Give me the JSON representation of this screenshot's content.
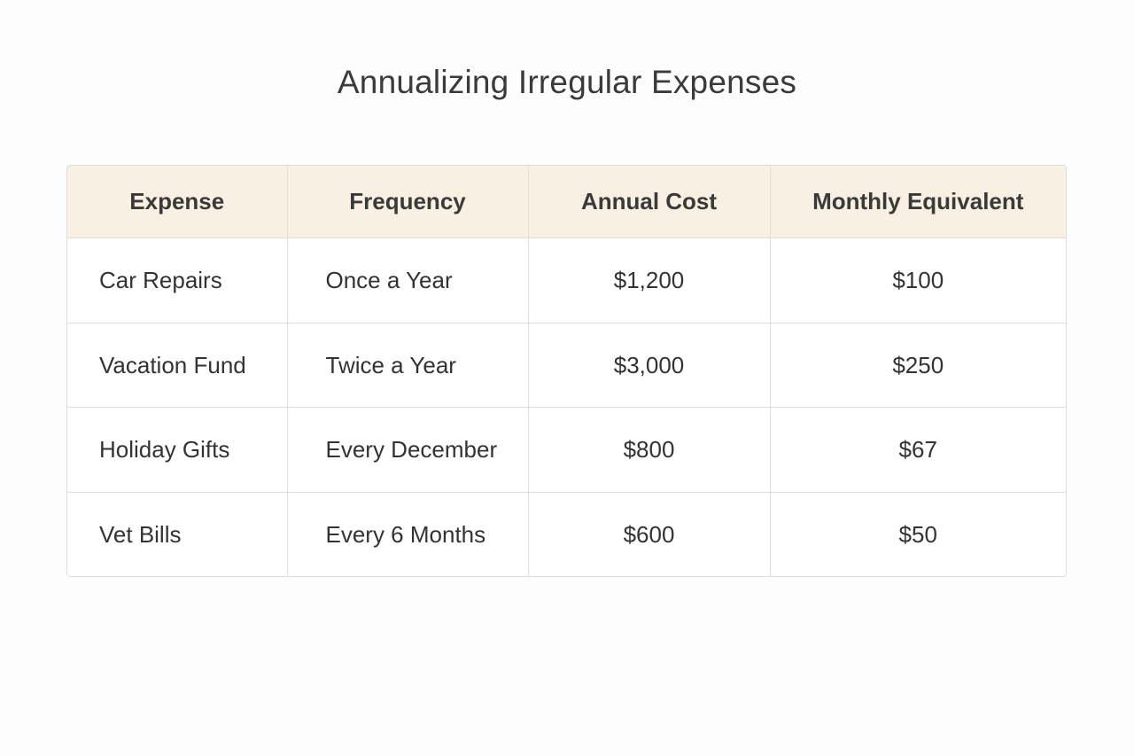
{
  "title": "Annualizing Irregular Expenses",
  "table": {
    "headers": [
      "Expense",
      "Frequency",
      "Annual Cost",
      "Monthly Equivalent"
    ],
    "rows": [
      {
        "expense": "Car Repairs",
        "frequency": "Once a Year",
        "annual_cost": "$1,200",
        "monthly": "$100"
      },
      {
        "expense": "Vacation Fund",
        "frequency": "Twice a Year",
        "annual_cost": "$3,000",
        "monthly": "$250"
      },
      {
        "expense": "Holiday Gifts",
        "frequency": "Every December",
        "annual_cost": "$800",
        "monthly": "$67"
      },
      {
        "expense": "Vet Bills",
        "frequency": "Every 6 Months",
        "annual_cost": "$600",
        "monthly": "$50"
      }
    ]
  },
  "colors": {
    "header_bg": "#f8f0e2",
    "border": "#dddddd",
    "text": "#333333"
  }
}
